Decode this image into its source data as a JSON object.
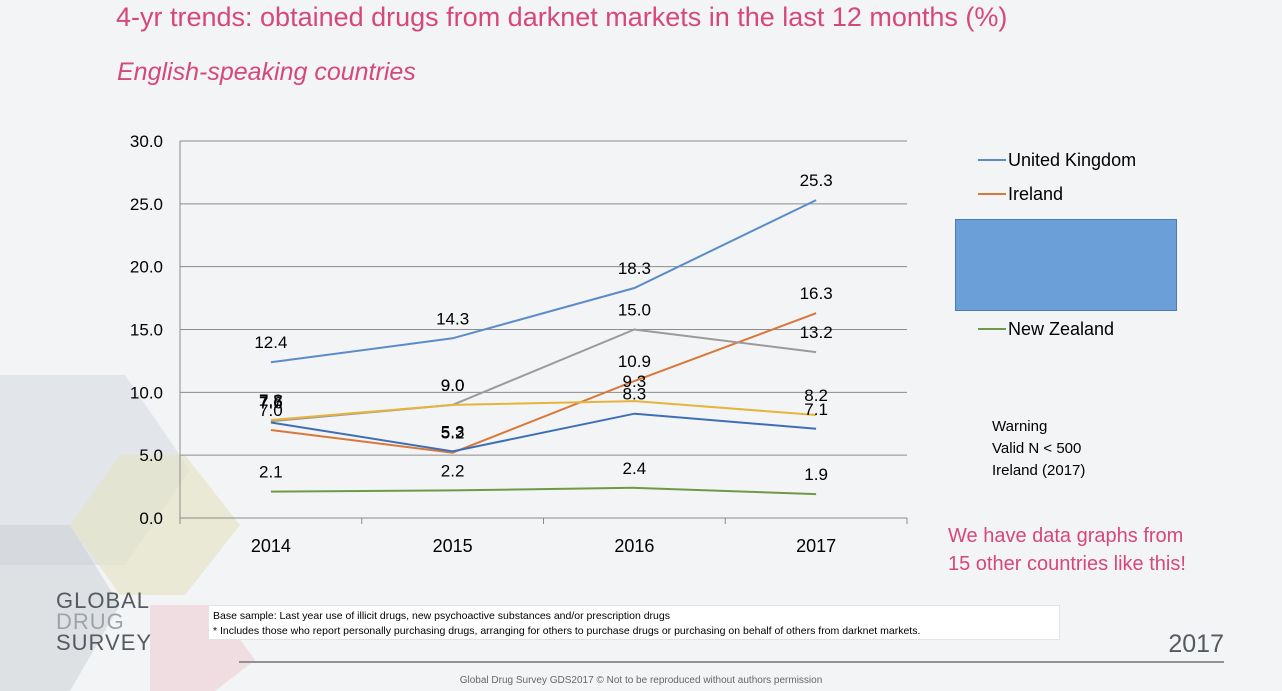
{
  "slide": {
    "title": "4-yr trends: obtained drugs from darknet markets in the last 12 months (%)",
    "subtitle": "English-speaking countries",
    "warning_lines": [
      "Warning",
      "Valid N < 500",
      "Ireland (2017)"
    ],
    "promo_lines": [
      "We have data graphs from",
      "15 other countries like this!"
    ],
    "footnote_lines": [
      "Base sample: Last year use of  illicit drugs, new psychoactive substances and/or prescription drugs",
      "* Includes those who report personally purchasing drugs, arranging for others to purchase drugs or purchasing on behalf of others from darknet markets."
    ],
    "logo_lines": [
      "GLOBAL",
      "DRUG",
      "SURVEY"
    ],
    "year_badge": "2017",
    "copyright": "Global Drug Survey GDS2017 © Not to be reproduced without authors permission",
    "colors": {
      "accent": "#d6487a",
      "legend_box": "#6a9fd8"
    }
  },
  "chart_data": {
    "type": "line",
    "categories": [
      "2014",
      "2015",
      "2016",
      "2017"
    ],
    "ylim": [
      0,
      30
    ],
    "yticks": [
      "0.0",
      "5.0",
      "10.0",
      "15.0",
      "20.0",
      "25.0",
      "30.0"
    ],
    "grid": true,
    "legend_position": "right",
    "series": [
      {
        "name": "United Kingdom",
        "color": "#5b8cc8",
        "values": [
          12.4,
          14.3,
          18.3,
          25.3
        ],
        "labels": [
          "12.4",
          "14.3",
          "18.3",
          "25.3"
        ]
      },
      {
        "name": "Ireland",
        "color": "#d9773a",
        "values": [
          7.0,
          5.2,
          10.9,
          16.3
        ],
        "labels": [
          "7.0",
          "5.2",
          "10.9",
          "16.3"
        ]
      },
      {
        "color": "#9a9a9a",
        "values": [
          7.7,
          9.0,
          15.0,
          13.2
        ],
        "labels": [
          "7.7",
          "9.0",
          "15.0",
          "13.2"
        ]
      },
      {
        "color": "#e6b43c",
        "values": [
          7.8,
          9.0,
          9.3,
          8.2
        ],
        "labels": [
          "7.8",
          "9.0",
          "9.3",
          "8.2"
        ]
      },
      {
        "color": "#3e6fb5",
        "values": [
          7.6,
          5.3,
          8.3,
          7.1
        ],
        "labels": [
          "7.6",
          "5.3",
          "8.3",
          "7.1"
        ]
      },
      {
        "name": "New Zealand",
        "color": "#6e9a46",
        "values": [
          2.1,
          2.2,
          2.4,
          1.9
        ],
        "labels": [
          "2.1",
          "2.2",
          "2.4",
          "1.9"
        ]
      }
    ]
  }
}
